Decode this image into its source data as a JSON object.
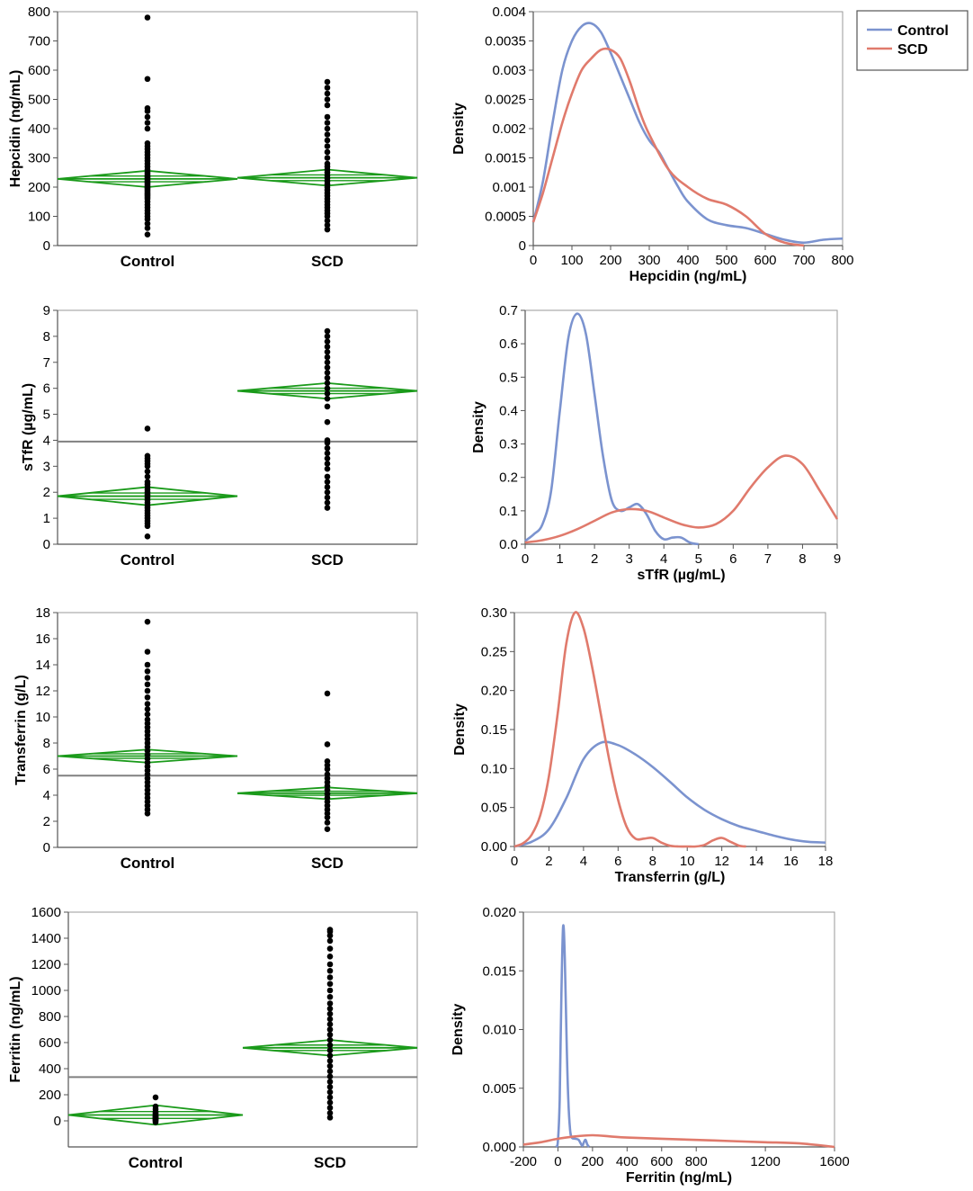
{
  "colors": {
    "control": "#7b93cf",
    "scd": "#e07a6c",
    "diamond": "#1a9a1a",
    "ref": "#808080",
    "point": "#000000"
  },
  "legend": {
    "entries": [
      {
        "name": "Control",
        "color": "#7b93cf"
      },
      {
        "name": "SCD",
        "color": "#e07a6c"
      }
    ]
  },
  "chart_data": [
    {
      "type": "scatter",
      "title": "",
      "xlabel": "",
      "ylabel": "Hepcidin (ng/mL)",
      "categories": [
        "Control",
        "SCD"
      ],
      "ylim": [
        0,
        800
      ],
      "yticks": [
        0,
        100,
        200,
        300,
        400,
        500,
        600,
        700,
        800
      ],
      "reference_line": null,
      "groups": [
        {
          "name": "Control",
          "mean": 228,
          "ci": [
            200,
            256
          ],
          "points": [
            38,
            60,
            75,
            90,
            100,
            110,
            120,
            130,
            140,
            150,
            160,
            165,
            170,
            175,
            180,
            185,
            190,
            195,
            200,
            205,
            210,
            215,
            220,
            225,
            230,
            235,
            240,
            245,
            250,
            260,
            270,
            280,
            290,
            300,
            310,
            320,
            330,
            340,
            350,
            400,
            420,
            440,
            460,
            470,
            570,
            780
          ]
        },
        {
          "name": "SCD",
          "mean": 232,
          "ci": [
            205,
            260
          ],
          "points": [
            55,
            70,
            85,
            100,
            110,
            120,
            130,
            140,
            150,
            160,
            170,
            180,
            190,
            200,
            210,
            220,
            230,
            240,
            250,
            260,
            270,
            280,
            300,
            320,
            340,
            360,
            380,
            400,
            420,
            440,
            480,
            500,
            520,
            540,
            560
          ]
        }
      ]
    },
    {
      "type": "line",
      "title": "",
      "xlabel": "Hepcidin (ng/mL)",
      "ylabel": "Density",
      "xlim": [
        0,
        800
      ],
      "ylim": [
        0,
        0.004
      ],
      "xticks": [
        0,
        100,
        200,
        300,
        400,
        500,
        600,
        700,
        800
      ],
      "yticks": [
        0,
        0.0005,
        0.001,
        0.0015,
        0.002,
        0.0025,
        0.003,
        0.0035,
        0.004
      ],
      "ytick_labels": [
        "0",
        "0.0005",
        "0.001",
        "0.0015",
        "0.002",
        "0.0025",
        "0.003",
        "0.0035",
        "0.004"
      ],
      "series": [
        {
          "name": "Control",
          "x": [
            0,
            25,
            50,
            75,
            100,
            125,
            150,
            175,
            200,
            225,
            250,
            275,
            300,
            325,
            350,
            375,
            400,
            450,
            500,
            550,
            600,
            650,
            700,
            750,
            800
          ],
          "y": [
            0.0004,
            0.0011,
            0.0021,
            0.003,
            0.0035,
            0.00375,
            0.0038,
            0.00365,
            0.0033,
            0.0029,
            0.0025,
            0.0021,
            0.0018,
            0.0016,
            0.0013,
            0.001,
            0.00075,
            0.00045,
            0.00035,
            0.0003,
            0.0002,
            0.0001,
            5e-05,
            0.0001,
            0.00012
          ]
        },
        {
          "name": "SCD",
          "x": [
            0,
            25,
            50,
            75,
            100,
            125,
            150,
            175,
            200,
            225,
            250,
            275,
            300,
            350,
            400,
            450,
            500,
            550,
            600,
            650,
            700
          ],
          "y": [
            0.0004,
            0.0009,
            0.0015,
            0.0021,
            0.0026,
            0.003,
            0.0032,
            0.00335,
            0.00335,
            0.0032,
            0.0028,
            0.0023,
            0.0019,
            0.0013,
            0.001,
            0.0008,
            0.0007,
            0.0005,
            0.0002,
            5e-05,
            0.0
          ]
        }
      ]
    },
    {
      "type": "scatter",
      "title": "",
      "xlabel": "",
      "ylabel": "sTfR (µg/mL)",
      "categories": [
        "Control",
        "SCD"
      ],
      "ylim": [
        0,
        9
      ],
      "yticks": [
        0,
        1,
        2,
        3,
        4,
        5,
        6,
        7,
        8,
        9
      ],
      "reference_line": 3.95,
      "groups": [
        {
          "name": "Control",
          "mean": 1.85,
          "ci": [
            1.5,
            2.2
          ],
          "points": [
            0.3,
            0.7,
            0.8,
            0.9,
            1.0,
            1.1,
            1.2,
            1.3,
            1.4,
            1.5,
            1.6,
            1.7,
            1.8,
            1.9,
            2.0,
            2.1,
            2.2,
            2.3,
            2.4,
            2.6,
            2.8,
            3.0,
            3.1,
            3.2,
            3.3,
            3.4,
            4.45
          ]
        },
        {
          "name": "SCD",
          "mean": 5.9,
          "ci": [
            5.6,
            6.2
          ],
          "points": [
            1.4,
            1.6,
            1.8,
            2.0,
            2.2,
            2.4,
            2.6,
            2.9,
            3.1,
            3.3,
            3.5,
            3.7,
            3.9,
            4.0,
            4.7,
            5.3,
            5.6,
            5.8,
            6.0,
            6.2,
            6.4,
            6.6,
            6.8,
            7.0,
            7.2,
            7.4,
            7.6,
            7.8,
            8.0,
            8.2
          ]
        }
      ]
    },
    {
      "type": "line",
      "title": "",
      "xlabel": "sTfR (µg/mL)",
      "ylabel": "Density",
      "xlim": [
        0,
        9
      ],
      "ylim": [
        0,
        0.7
      ],
      "xticks": [
        0,
        1,
        2,
        3,
        4,
        5,
        6,
        7,
        8,
        9
      ],
      "yticks": [
        0,
        0.1,
        0.2,
        0.3,
        0.4,
        0.5,
        0.6,
        0.7
      ],
      "ytick_labels": [
        "0.0",
        "0.1",
        "0.2",
        "0.3",
        "0.4",
        "0.5",
        "0.6",
        "0.7"
      ],
      "series": [
        {
          "name": "Control",
          "x": [
            0,
            0.25,
            0.5,
            0.75,
            1.0,
            1.25,
            1.5,
            1.75,
            2.0,
            2.25,
            2.5,
            2.75,
            3.0,
            3.25,
            3.5,
            3.75,
            4.0,
            4.25,
            4.5,
            4.75,
            5.0
          ],
          "y": [
            0.01,
            0.03,
            0.06,
            0.16,
            0.4,
            0.62,
            0.69,
            0.63,
            0.45,
            0.26,
            0.13,
            0.1,
            0.11,
            0.12,
            0.09,
            0.04,
            0.015,
            0.02,
            0.02,
            0.005,
            0.0
          ]
        },
        {
          "name": "SCD",
          "x": [
            0,
            0.5,
            1,
            1.5,
            2,
            2.5,
            3,
            3.5,
            4,
            4.5,
            5,
            5.5,
            6,
            6.5,
            7,
            7.5,
            8,
            8.5,
            9
          ],
          "y": [
            0.005,
            0.012,
            0.025,
            0.045,
            0.07,
            0.095,
            0.105,
            0.1,
            0.08,
            0.06,
            0.05,
            0.06,
            0.1,
            0.17,
            0.23,
            0.265,
            0.24,
            0.16,
            0.075
          ]
        }
      ]
    },
    {
      "type": "scatter",
      "title": "",
      "xlabel": "",
      "ylabel": "Transferrin (g/L)",
      "categories": [
        "Control",
        "SCD"
      ],
      "ylim": [
        0,
        18
      ],
      "yticks": [
        0,
        2,
        4,
        6,
        8,
        10,
        12,
        14,
        16,
        18
      ],
      "reference_line": 5.5,
      "groups": [
        {
          "name": "Control",
          "mean": 7.0,
          "ci": [
            6.5,
            7.5
          ],
          "points": [
            2.6,
            2.9,
            3.2,
            3.5,
            3.8,
            4.1,
            4.4,
            4.7,
            5.0,
            5.3,
            5.6,
            5.9,
            6.2,
            6.5,
            6.8,
            7.1,
            7.4,
            7.7,
            8.0,
            8.3,
            8.6,
            8.9,
            9.2,
            9.5,
            9.8,
            10.2,
            10.6,
            11.0,
            11.5,
            12.0,
            12.5,
            13.0,
            13.5,
            14.0,
            15.0,
            17.3
          ]
        },
        {
          "name": "SCD",
          "mean": 4.15,
          "ci": [
            3.7,
            4.6
          ],
          "points": [
            1.4,
            1.9,
            2.3,
            2.6,
            2.9,
            3.2,
            3.5,
            3.8,
            4.1,
            4.4,
            4.7,
            5.0,
            5.3,
            5.6,
            6.0,
            6.3,
            6.6,
            7.9,
            11.8
          ]
        }
      ]
    },
    {
      "type": "line",
      "title": "",
      "xlabel": "Transferrin (g/L)",
      "ylabel": "Density",
      "xlim": [
        0,
        18
      ],
      "ylim": [
        0,
        0.3
      ],
      "xticks": [
        0,
        2,
        4,
        6,
        8,
        10,
        12,
        14,
        16,
        18
      ],
      "yticks": [
        0,
        0.05,
        0.1,
        0.15,
        0.2,
        0.25,
        0.3
      ],
      "ytick_labels": [
        "0.00",
        "0.05",
        "0.10",
        "0.15",
        "0.20",
        "0.25",
        "0.30"
      ],
      "series": [
        {
          "name": "Control",
          "x": [
            0,
            1,
            2,
            3,
            4,
            5,
            6,
            7,
            8,
            9,
            10,
            11,
            12,
            13,
            14,
            15,
            16,
            17,
            18
          ],
          "y": [
            0.0,
            0.006,
            0.022,
            0.062,
            0.112,
            0.133,
            0.13,
            0.118,
            0.102,
            0.083,
            0.063,
            0.047,
            0.035,
            0.026,
            0.02,
            0.014,
            0.009,
            0.006,
            0.005
          ]
        },
        {
          "name": "SCD",
          "x": [
            0,
            0.5,
            1,
            1.5,
            2,
            2.5,
            3,
            3.5,
            4,
            4.5,
            5,
            5.5,
            6,
            6.5,
            7,
            7.5,
            8,
            8.5,
            9,
            9.5,
            10,
            10.5,
            11,
            11.5,
            12,
            12.5,
            13,
            13.4
          ],
          "y": [
            0.0,
            0.004,
            0.015,
            0.04,
            0.09,
            0.17,
            0.26,
            0.3,
            0.28,
            0.23,
            0.17,
            0.11,
            0.06,
            0.025,
            0.01,
            0.01,
            0.011,
            0.005,
            0.001,
            0.0,
            0.0,
            0.0,
            0.002,
            0.008,
            0.011,
            0.006,
            0.001,
            0.0
          ]
        }
      ]
    },
    {
      "type": "scatter",
      "title": "",
      "xlabel": "",
      "ylabel": "Ferritin (ng/mL)",
      "categories": [
        "Control",
        "SCD"
      ],
      "ylim": [
        -200,
        1600
      ],
      "yticks": [
        0,
        200,
        400,
        600,
        800,
        1000,
        1200,
        1400,
        1600
      ],
      "reference_line": 335,
      "groups": [
        {
          "name": "Control",
          "mean": 45,
          "ci": [
            -30,
            120
          ],
          "points": [
            -10,
            0,
            5,
            10,
            15,
            20,
            25,
            30,
            35,
            40,
            50,
            60,
            70,
            90,
            110,
            180
          ]
        },
        {
          "name": "SCD",
          "mean": 560,
          "ci": [
            500,
            620
          ],
          "points": [
            25,
            60,
            100,
            140,
            180,
            220,
            260,
            300,
            340,
            380,
            420,
            460,
            500,
            540,
            580,
            620,
            660,
            700,
            740,
            780,
            820,
            860,
            900,
            950,
            1000,
            1050,
            1100,
            1150,
            1200,
            1260,
            1320,
            1380,
            1420,
            1450,
            1465
          ]
        }
      ]
    },
    {
      "type": "line",
      "title": "",
      "xlabel": "Ferritin (ng/mL)",
      "ylabel": "Density",
      "xlim": [
        -200,
        1600
      ],
      "ylim": [
        0,
        0.02
      ],
      "xticks": [
        -200,
        0,
        200,
        400,
        600,
        800,
        1200,
        1600
      ],
      "xtick_labels": [
        "-200",
        "0",
        "200",
        "400",
        "600",
        "800",
        "1200",
        "1600"
      ],
      "yticks": [
        0,
        0.005,
        0.01,
        0.015,
        0.02
      ],
      "ytick_labels": [
        "0.000",
        "0.005",
        "0.010",
        "0.015",
        "0.020"
      ],
      "series": [
        {
          "name": "Control",
          "x": [
            -10,
            0,
            10,
            20,
            30,
            40,
            50,
            60,
            70,
            80,
            100,
            120,
            140,
            150,
            160,
            170,
            180
          ],
          "y": [
            0.0,
            0.0005,
            0.004,
            0.013,
            0.0188,
            0.016,
            0.009,
            0.004,
            0.0015,
            0.0008,
            0.0007,
            0.0006,
            0.0001,
            0.0004,
            0.0006,
            0.0002,
            0.0
          ]
        },
        {
          "name": "SCD",
          "x": [
            -200,
            -100,
            0,
            100,
            200,
            300,
            400,
            600,
            800,
            1000,
            1200,
            1400,
            1600
          ],
          "y": [
            0.0002,
            0.0004,
            0.0007,
            0.0009,
            0.001,
            0.0009,
            0.0008,
            0.0007,
            0.0006,
            0.0005,
            0.0004,
            0.0003,
            0.0
          ]
        }
      ]
    }
  ]
}
